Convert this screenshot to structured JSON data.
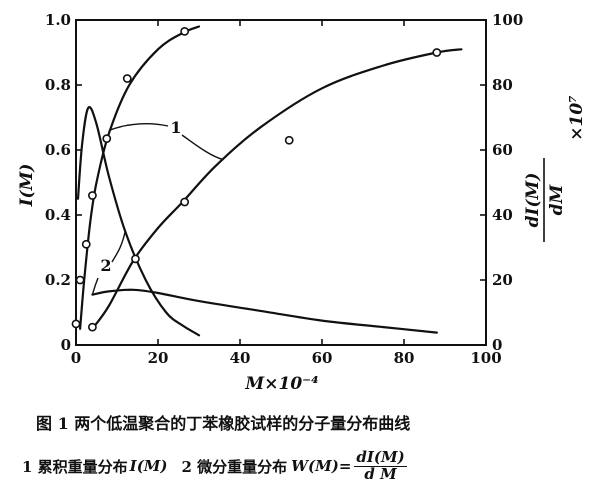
{
  "chart_data": {
    "type": "line",
    "x": {
      "label": "M×10⁻⁴",
      "lim": [
        0,
        100
      ],
      "ticks": [
        0,
        20,
        40,
        60,
        80,
        100
      ]
    },
    "y_left": {
      "label": "I(M)",
      "lim": [
        0,
        1.0
      ],
      "ticks": [
        "0",
        "0.2",
        "0.4",
        "0.6",
        "0.8",
        "1.0"
      ]
    },
    "y_right": {
      "label": "dI(M)/dM ×10⁷",
      "numerator": "dI(M)",
      "denominator": "dM",
      "factor": "×10⁷",
      "lim": [
        0,
        100
      ],
      "ticks": [
        "0",
        "20",
        "40",
        "60",
        "80",
        "100"
      ]
    },
    "series": [
      {
        "name": "1",
        "kind": "cumulative",
        "axis": "left",
        "x": [
          1,
          2,
          3.5,
          5,
          8,
          13,
          20,
          26,
          30
        ],
        "y": [
          0.05,
          0.2,
          0.38,
          0.5,
          0.65,
          0.8,
          0.91,
          0.96,
          0.98
        ],
        "points_x": [
          0,
          1,
          2.5,
          4,
          7.5,
          12.5,
          26.5
        ],
        "points_y": [
          0.065,
          0.2,
          0.31,
          0.46,
          0.635,
          0.82,
          0.965
        ]
      },
      {
        "name": "2",
        "kind": "differential",
        "axis": "left",
        "x": [
          0.5,
          1.5,
          3,
          5,
          8,
          12,
          17,
          22,
          26,
          30
        ],
        "y": [
          0.45,
          0.62,
          0.73,
          0.68,
          0.52,
          0.35,
          0.2,
          0.1,
          0.06,
          0.03
        ]
      },
      {
        "name": "1",
        "kind": "cumulative",
        "axis": "right",
        "x": [
          4,
          8,
          14,
          20,
          26,
          34,
          45,
          60,
          75,
          88,
          94
        ],
        "y": [
          5,
          12,
          26,
          36,
          44,
          55,
          67,
          79,
          86,
          90,
          91
        ],
        "points_x": [
          4,
          14.5,
          26.5,
          52,
          88
        ],
        "points_y": [
          5.5,
          26.5,
          44,
          63,
          90
        ]
      },
      {
        "name": "2",
        "kind": "differential",
        "axis": "right",
        "x": [
          4,
          8,
          14,
          20,
          30,
          45,
          60,
          75,
          88
        ],
        "y": [
          15.5,
          16.5,
          17,
          16,
          13.5,
          10.5,
          7.5,
          5.5,
          3.8
        ]
      }
    ]
  },
  "caption": {
    "figure_title": "图 1  两个低温聚合的丁苯橡胶试样的分子量分布曲线",
    "legend_1": "1 累积重量分布",
    "legend_1_symbol": "I(M)",
    "legend_2": "2 微分重量分布",
    "legend_2_symbol": "W(M)=",
    "legend_2_num": "dI(M)",
    "legend_2_den": "d M"
  }
}
